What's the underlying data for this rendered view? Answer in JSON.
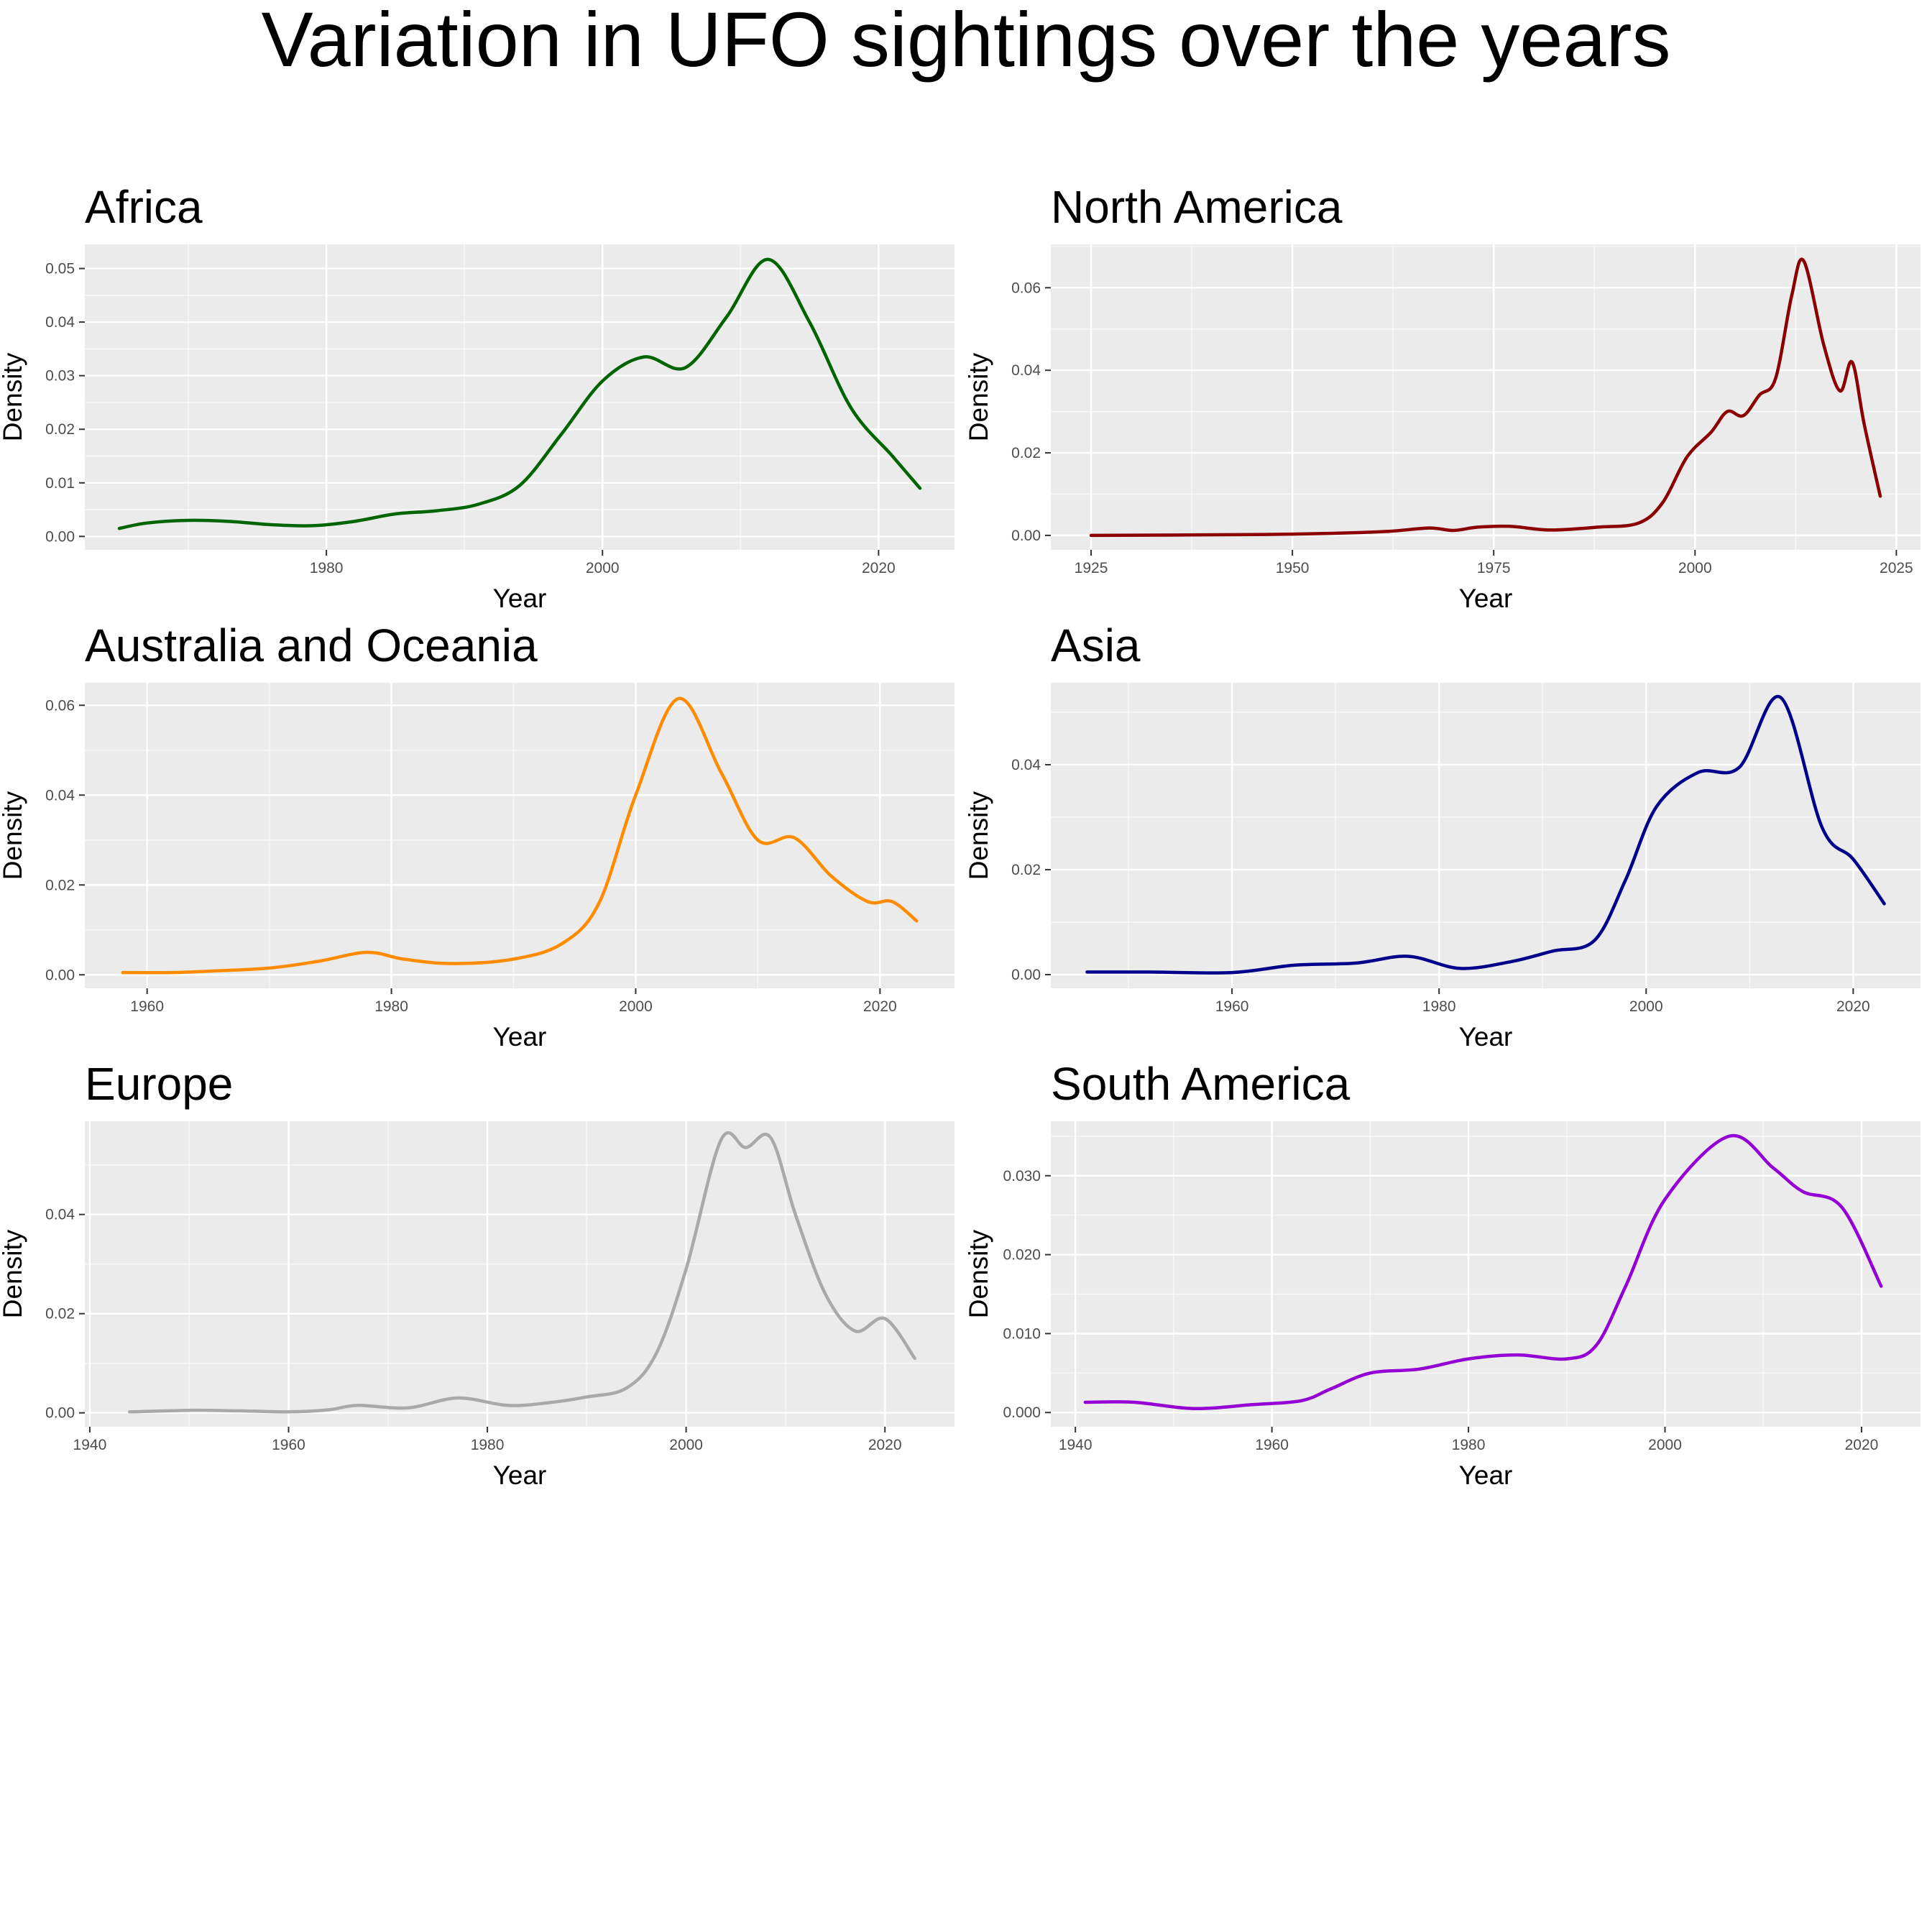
{
  "title": "Variation in UFO sightings over the years",
  "chart_data": [
    {
      "type": "line",
      "title": "Africa",
      "xlabel": "Year",
      "ylabel": "Density",
      "color": "#006400",
      "xlim": [
        1962.5,
        2025.5
      ],
      "ylim": [
        -0.0025,
        0.0545
      ],
      "xticks": [
        1980,
        2000,
        2020
      ],
      "xticklabels": [
        "1980",
        "2000",
        "2020"
      ],
      "yticks": [
        0,
        0.01,
        0.02,
        0.03,
        0.04,
        0.05
      ],
      "yticklabels": [
        "0.00",
        "0.01",
        "0.02",
        "0.03",
        "0.04",
        "0.05"
      ],
      "grid": true,
      "series": [
        {
          "x": [
            1965,
            1967,
            1970,
            1973,
            1976,
            1979,
            1982,
            1985,
            1988,
            1991,
            1994,
            1997,
            2000,
            2003,
            2006,
            2009,
            2012,
            2015,
            2018,
            2021,
            2023
          ],
          "y": [
            0.0015,
            0.0025,
            0.003,
            0.0028,
            0.0022,
            0.002,
            0.0028,
            0.0042,
            0.0048,
            0.006,
            0.0095,
            0.019,
            0.029,
            0.0335,
            0.0315,
            0.041,
            0.0517,
            0.04,
            0.024,
            0.015,
            0.009
          ]
        }
      ]
    },
    {
      "type": "line",
      "title": "North America",
      "xlabel": "Year",
      "ylabel": "Density",
      "color": "#8b0000",
      "xlim": [
        1920,
        2028
      ],
      "ylim": [
        -0.0035,
        0.0705
      ],
      "xticks": [
        1925,
        1950,
        1975,
        2000,
        2025
      ],
      "xticklabels": [
        "1925",
        "1950",
        "1975",
        "2000",
        "2025"
      ],
      "yticks": [
        0,
        0.02,
        0.04,
        0.06
      ],
      "yticklabels": [
        "0.00",
        "0.02",
        "0.04",
        "0.06"
      ],
      "grid": true,
      "series": [
        {
          "x": [
            1925,
            1945,
            1955,
            1962,
            1967,
            1970,
            1973,
            1977,
            1982,
            1988,
            1993,
            1996,
            1999,
            2002,
            2004,
            2006,
            2008,
            2010,
            2012,
            2013.5,
            2016,
            2018,
            2019.5,
            2021,
            2023
          ],
          "y": [
            0,
            0.0002,
            0.0005,
            0.001,
            0.0018,
            0.0012,
            0.002,
            0.0022,
            0.0013,
            0.002,
            0.003,
            0.008,
            0.019,
            0.025,
            0.03,
            0.029,
            0.034,
            0.038,
            0.058,
            0.0665,
            0.046,
            0.035,
            0.042,
            0.027,
            0.0095
          ]
        }
      ]
    },
    {
      "type": "line",
      "title": "Australia and Oceania",
      "xlabel": "Year",
      "ylabel": "Density",
      "color": "#ff8c00",
      "xlim": [
        1954.9,
        2026.1
      ],
      "ylim": [
        -0.003,
        0.065
      ],
      "xticks": [
        1960,
        1980,
        2000,
        2020
      ],
      "xticklabels": [
        "1960",
        "1980",
        "2000",
        "2020"
      ],
      "yticks": [
        0,
        0.02,
        0.04,
        0.06
      ],
      "yticklabels": [
        "0.00",
        "0.02",
        "0.04",
        "0.06"
      ],
      "grid": true,
      "series": [
        {
          "x": [
            1958,
            1962,
            1965,
            1970,
            1974,
            1978,
            1981,
            1985,
            1990,
            1994,
            1997,
            2000,
            2003.5,
            2007,
            2010,
            2013,
            2016,
            2019,
            2021,
            2023
          ],
          "y": [
            0.0005,
            0.0005,
            0.0008,
            0.0015,
            0.003,
            0.005,
            0.0035,
            0.0025,
            0.0035,
            0.007,
            0.016,
            0.04,
            0.0615,
            0.045,
            0.03,
            0.0305,
            0.022,
            0.0163,
            0.0163,
            0.012
          ]
        }
      ]
    },
    {
      "type": "line",
      "title": "Asia",
      "xlabel": "Year",
      "ylabel": "Density",
      "color": "#00008b",
      "xlim": [
        1942.5,
        2026.5
      ],
      "ylim": [
        -0.0026,
        0.0556
      ],
      "xticks": [
        1960,
        1980,
        2000,
        2020
      ],
      "xticklabels": [
        "1960",
        "1980",
        "2000",
        "2020"
      ],
      "yticks": [
        0,
        0.02,
        0.04
      ],
      "yticklabels": [
        "0.00",
        "0.02",
        "0.04"
      ],
      "grid": true,
      "series": [
        {
          "x": [
            1946,
            1952,
            1960,
            1966,
            1972,
            1977,
            1982,
            1987,
            1991,
            1995,
            1998,
            2001,
            2005,
            2009,
            2013,
            2017,
            2020,
            2023
          ],
          "y": [
            0.0005,
            0.0005,
            0.0004,
            0.0018,
            0.0022,
            0.0035,
            0.0012,
            0.0025,
            0.0045,
            0.0065,
            0.018,
            0.032,
            0.0385,
            0.0395,
            0.0528,
            0.028,
            0.022,
            0.0135
          ]
        }
      ]
    },
    {
      "type": "line",
      "title": "Europe",
      "xlabel": "Year",
      "ylabel": "Density",
      "color": "#a9a9a9",
      "xlim": [
        1939.5,
        2027
      ],
      "ylim": [
        -0.0028,
        0.0588
      ],
      "xticks": [
        1940,
        1960,
        1980,
        2000,
        2020
      ],
      "xticklabels": [
        "1940",
        "1960",
        "1980",
        "2000",
        "2020"
      ],
      "yticks": [
        0,
        0.02,
        0.04
      ],
      "yticklabels": [
        "0.00",
        "0.02",
        "0.04"
      ],
      "grid": true,
      "series": [
        {
          "x": [
            1944,
            1950,
            1955,
            1960,
            1964,
            1967,
            1972,
            1977,
            1982,
            1986,
            1990,
            1994,
            1997,
            2000,
            2003.5,
            2006,
            2008.5,
            2011,
            2014,
            2017,
            2020,
            2023
          ],
          "y": [
            0.0002,
            0.0005,
            0.0004,
            0.0002,
            0.0006,
            0.0015,
            0.001,
            0.003,
            0.0015,
            0.002,
            0.0032,
            0.005,
            0.012,
            0.029,
            0.055,
            0.0535,
            0.0555,
            0.04,
            0.024,
            0.0165,
            0.019,
            0.011
          ]
        }
      ]
    },
    {
      "type": "line",
      "title": "South America",
      "xlabel": "Year",
      "ylabel": "Density",
      "color": "#9400d3",
      "xlim": [
        1937.5,
        2026
      ],
      "ylim": [
        -0.0018,
        0.0369
      ],
      "xticks": [
        1940,
        1960,
        1980,
        2000,
        2020
      ],
      "xticklabels": [
        "1940",
        "1960",
        "1980",
        "2000",
        "2020"
      ],
      "yticks": [
        0,
        0.01,
        0.02,
        0.03
      ],
      "yticklabels": [
        "0.000",
        "0.010",
        "0.020",
        "0.030"
      ],
      "grid": true,
      "series": [
        {
          "x": [
            1941,
            1946,
            1952,
            1958,
            1963,
            1966,
            1970,
            1975,
            1980,
            1985,
            1990,
            1993,
            1996,
            2000,
            2006.5,
            2011,
            2014,
            2018,
            2022
          ],
          "y": [
            0.0013,
            0.0013,
            0.0005,
            0.001,
            0.0015,
            0.003,
            0.005,
            0.0055,
            0.0068,
            0.0073,
            0.0068,
            0.0085,
            0.016,
            0.027,
            0.035,
            0.031,
            0.028,
            0.026,
            0.016
          ]
        }
      ]
    }
  ]
}
